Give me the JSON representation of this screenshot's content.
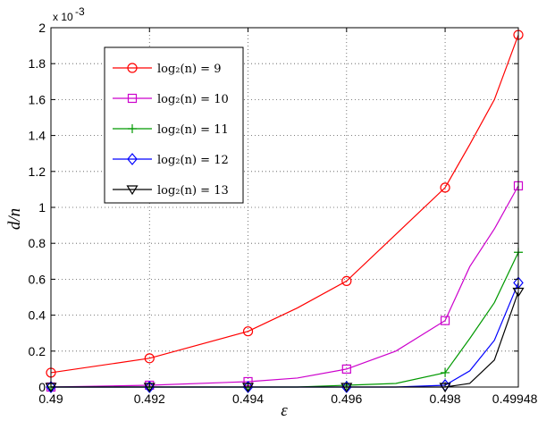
{
  "chart_data": {
    "type": "line",
    "x": [
      0.49,
      0.492,
      0.494,
      0.495,
      0.496,
      0.497,
      0.498,
      0.4985,
      0.499,
      0.499486
    ],
    "series": [
      {
        "name": "log₂(n) = 9",
        "color": "#ff0000",
        "marker": "circle",
        "values": [
          8e-05,
          0.00016,
          0.00031,
          null,
          0.00059,
          null,
          0.00111,
          null,
          null,
          0.00196
        ],
        "all_values": [
          8e-05,
          0.00016,
          0.00031,
          0.00044,
          0.00059,
          0.00085,
          0.00111,
          0.00135,
          0.0016,
          0.00196
        ]
      },
      {
        "name": "log₂(n) = 10",
        "color": "#cc00cc",
        "marker": "square",
        "values": [
          0.0,
          1e-05,
          3e-05,
          null,
          0.0001,
          null,
          0.00037,
          null,
          null,
          0.00112
        ],
        "all_values": [
          0.0,
          1e-05,
          3e-05,
          5e-05,
          0.0001,
          0.0002,
          0.00037,
          0.00067,
          0.00088,
          0.00112
        ]
      },
      {
        "name": "log₂(n) = 11",
        "color": "#009900",
        "marker": "plus",
        "values": [
          0.0,
          0.0,
          0.0,
          null,
          1e-05,
          null,
          8e-05,
          null,
          null,
          0.00075
        ],
        "all_values": [
          0.0,
          0.0,
          0.0,
          0.0,
          1e-05,
          2e-05,
          8e-05,
          0.00027,
          0.00047,
          0.00075
        ]
      },
      {
        "name": "log₂(n) = 12",
        "color": "#0000ff",
        "marker": "diamond",
        "values": [
          0.0,
          0.0,
          0.0,
          null,
          0.0,
          null,
          1e-05,
          null,
          null,
          0.00058
        ],
        "all_values": [
          0.0,
          0.0,
          0.0,
          0.0,
          0.0,
          0.0,
          1e-05,
          9e-05,
          0.00026,
          0.00058
        ]
      },
      {
        "name": "log₂(n) = 13",
        "color": "#000000",
        "marker": "triangle-down",
        "values": [
          0.0,
          0.0,
          0.0,
          null,
          0.0,
          null,
          0.0,
          null,
          null,
          0.00053
        ],
        "all_values": [
          0.0,
          0.0,
          0.0,
          0.0,
          0.0,
          0.0,
          0.0,
          2e-05,
          0.00015,
          0.00053
        ]
      }
    ],
    "xlabel": "ε",
    "ylabel": "d/n",
    "xlim": [
      0.49,
      0.499486
    ],
    "ylim": [
      0,
      0.002
    ],
    "xticks": [
      "0.49",
      "0.492",
      "0.494",
      "0.496",
      "0.498",
      "0.499486"
    ],
    "yticks": [
      "0",
      "0.2",
      "0.4",
      "0.6",
      "0.8",
      "1",
      "1.2",
      "1.4",
      "1.6",
      "1.8",
      "2"
    ],
    "y_exponent": "x 10",
    "y_exponent_power": "-3",
    "grid": true,
    "legend_position": "top-left"
  }
}
